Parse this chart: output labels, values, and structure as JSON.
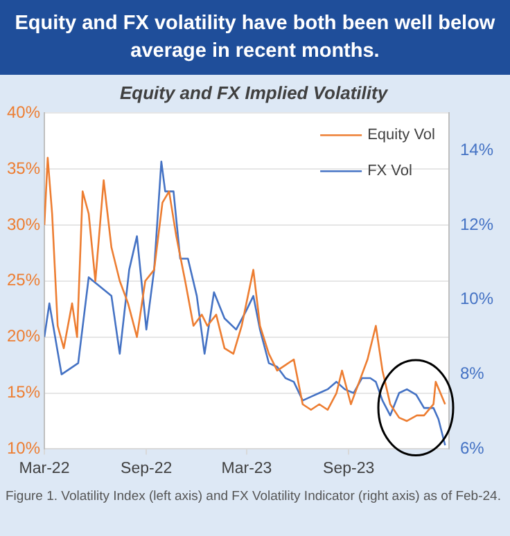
{
  "chart_data": {
    "type": "line",
    "title": "Equity and FX volatility have both been well below average in recent months.",
    "subtitle": "Equity and FX Implied Volatility",
    "annotations": [
      "Figure 1. Volatility Index (left axis) and FX Volatility Indicator (right axis) as of Feb-24."
    ],
    "xlim": [
      "2022-03-01",
      "2024-02-29"
    ],
    "xticks": [
      {
        "value": "2022-03-01",
        "label": "Mar-22"
      },
      {
        "value": "2022-09-01",
        "label": "Sep-22"
      },
      {
        "value": "2023-03-01",
        "label": "Mar-23"
      },
      {
        "value": "2023-09-01",
        "label": "Sep-23"
      }
    ],
    "ylim": [
      10,
      40
    ],
    "yticks": [
      {
        "value": 10,
        "label": "10%"
      },
      {
        "value": 15,
        "label": "15%"
      },
      {
        "value": 20,
        "label": "20%"
      },
      {
        "value": 25,
        "label": "25%"
      },
      {
        "value": 30,
        "label": "30%"
      },
      {
        "value": 35,
        "label": "35%"
      },
      {
        "value": 40,
        "label": "40%"
      }
    ],
    "y2lim": [
      6,
      15
    ],
    "y2ticks": [
      {
        "value": 6,
        "label": "6%"
      },
      {
        "value": 8,
        "label": "8%"
      },
      {
        "value": 10,
        "label": "10%"
      },
      {
        "value": 12,
        "label": "12%"
      },
      {
        "value": 14,
        "label": "14%"
      }
    ],
    "grid": "y",
    "legend": "top right",
    "marker": "none",
    "series": [
      {
        "name": "Equity Vol",
        "color": "#ed7d31",
        "x": [
          "2022-03-01",
          "2022-03-07",
          "2022-03-15",
          "2022-03-25",
          "2022-04-05",
          "2022-04-20",
          "2022-04-29",
          "2022-05-09",
          "2022-05-20",
          "2022-06-01",
          "2022-06-16",
          "2022-06-30",
          "2022-07-15",
          "2022-07-30",
          "2022-08-15",
          "2022-08-30",
          "2022-09-15",
          "2022-09-30",
          "2022-10-12",
          "2022-10-25",
          "2022-11-10",
          "2022-11-25",
          "2022-12-10",
          "2022-12-20",
          "2023-01-05",
          "2023-01-20",
          "2023-02-05",
          "2023-02-20",
          "2023-03-13",
          "2023-03-25",
          "2023-04-10",
          "2023-04-25",
          "2023-05-10",
          "2023-05-25",
          "2023-06-10",
          "2023-06-25",
          "2023-07-10",
          "2023-07-25",
          "2023-08-10",
          "2023-08-20",
          "2023-09-05",
          "2023-09-20",
          "2023-10-05",
          "2023-10-20",
          "2023-11-01",
          "2023-11-15",
          "2023-12-01",
          "2023-12-15",
          "2024-01-02",
          "2024-01-15",
          "2024-02-01",
          "2024-02-05",
          "2024-02-22"
        ],
        "values": [
          30,
          36,
          31,
          21,
          19,
          23,
          20,
          33,
          31,
          25,
          34,
          28,
          25,
          23,
          20,
          25,
          26,
          32,
          33,
          29,
          25,
          21,
          22,
          21,
          22,
          19,
          18.5,
          21,
          26,
          21,
          18.5,
          17,
          17.5,
          18,
          14,
          13.5,
          14,
          13.5,
          15,
          17,
          14,
          16,
          18,
          21,
          17,
          14,
          12.8,
          12.5,
          13,
          13,
          14,
          16,
          14
        ]
      },
      {
        "name": "FX Vol",
        "color": "#4472c4",
        "axis": "y2",
        "x": [
          "2022-03-01",
          "2022-03-10",
          "2022-04-01",
          "2022-05-01",
          "2022-05-20",
          "2022-06-30",
          "2022-07-15",
          "2022-08-01",
          "2022-08-15",
          "2022-09-01",
          "2022-09-15",
          "2022-09-28",
          "2022-10-05",
          "2022-10-20",
          "2022-11-01",
          "2022-11-15",
          "2022-12-01",
          "2022-12-15",
          "2023-01-01",
          "2023-01-20",
          "2023-02-10",
          "2023-02-28",
          "2023-03-13",
          "2023-03-25",
          "2023-04-10",
          "2023-04-25",
          "2023-05-10",
          "2023-05-25",
          "2023-06-10",
          "2023-06-25",
          "2023-07-10",
          "2023-07-25",
          "2023-08-10",
          "2023-08-25",
          "2023-09-10",
          "2023-09-25",
          "2023-10-10",
          "2023-10-20",
          "2023-11-01",
          "2023-11-15",
          "2023-12-01",
          "2023-12-15",
          "2024-01-01",
          "2024-01-15",
          "2024-02-01",
          "2024-02-10",
          "2024-02-22"
        ],
        "values": [
          9.0,
          9.9,
          8.0,
          8.3,
          10.6,
          10.1,
          8.55,
          10.8,
          11.7,
          9.2,
          10.8,
          13.7,
          12.9,
          12.9,
          11.1,
          11.1,
          10.1,
          8.55,
          10.2,
          9.5,
          9.2,
          9.7,
          10.1,
          9.2,
          8.3,
          8.2,
          7.9,
          7.8,
          7.3,
          7.4,
          7.5,
          7.6,
          7.8,
          7.6,
          7.5,
          7.9,
          7.9,
          7.8,
          7.3,
          6.9,
          7.5,
          7.6,
          7.45,
          7.1,
          7.1,
          6.8,
          6.1
        ]
      }
    ]
  }
}
